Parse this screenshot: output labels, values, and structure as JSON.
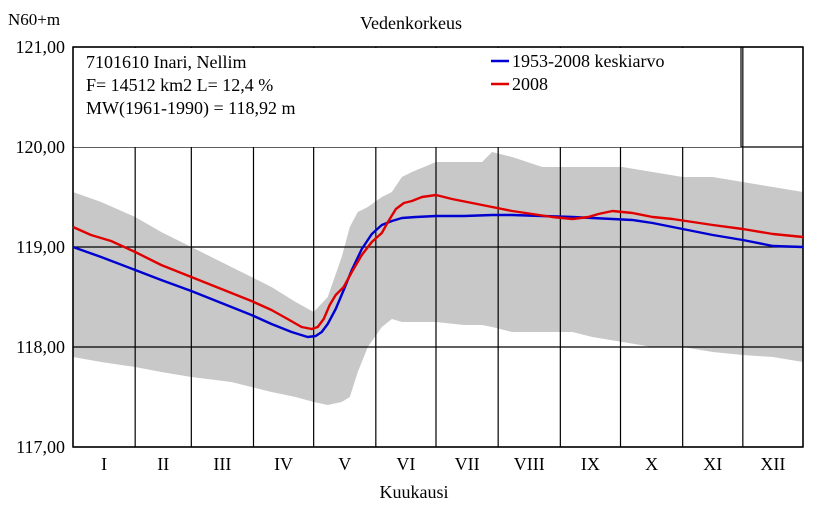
{
  "chart_data": {
    "type": "line",
    "title": "Vedenkorkeus",
    "ylabel": "N60+m",
    "xlabel": "Kuukausi",
    "ylim": [
      117.0,
      121.0
    ],
    "yticks": [
      "121,00",
      "120,00",
      "119,00",
      "118,00",
      "117,00"
    ],
    "ytick_values": [
      121.0,
      120.0,
      119.0,
      118.0,
      117.0
    ],
    "months": [
      "I",
      "II",
      "III",
      "IV",
      "V",
      "VI",
      "VII",
      "VIII",
      "IX",
      "X",
      "XI",
      "XII"
    ],
    "grid": true,
    "station_info": [
      "7101610 Inari, Nellim",
      "F=  14512 km2 L=  12,4 %",
      "MW(1961-1990) = 118,92 m"
    ],
    "legend_position": "top-right",
    "x_unit": "day of year",
    "envelope": {
      "x": [
        1,
        15,
        32,
        45,
        60,
        80,
        100,
        112,
        121,
        128,
        135,
        139,
        143,
        148,
        155,
        160,
        165,
        170,
        182,
        196,
        205,
        210,
        220,
        235,
        250,
        260,
        275,
        290,
        305,
        320,
        335,
        350,
        365
      ],
      "upper": [
        119.55,
        119.45,
        119.3,
        119.15,
        119.0,
        118.8,
        118.6,
        118.45,
        118.35,
        118.5,
        118.9,
        119.2,
        119.35,
        119.4,
        119.5,
        119.55,
        119.7,
        119.75,
        119.85,
        119.85,
        119.85,
        119.95,
        119.9,
        119.8,
        119.8,
        119.8,
        119.8,
        119.75,
        119.7,
        119.7,
        119.65,
        119.6,
        119.55
      ],
      "lower": [
        117.9,
        117.85,
        117.8,
        117.75,
        117.7,
        117.65,
        117.55,
        117.5,
        117.45,
        117.42,
        117.45,
        117.5,
        117.75,
        118.0,
        118.2,
        118.28,
        118.25,
        118.25,
        118.25,
        118.22,
        118.22,
        118.2,
        118.15,
        118.15,
        118.15,
        118.1,
        118.05,
        118.0,
        118.0,
        117.95,
        117.92,
        117.9,
        117.85
      ]
    },
    "series": [
      {
        "name": "1953-2008 keskiarvo",
        "color": "#0000d0",
        "x": [
          1,
          15,
          32,
          45,
          60,
          75,
          90,
          100,
          110,
          118,
          122,
          125,
          128,
          132,
          136,
          140,
          145,
          150,
          155,
          160,
          165,
          172,
          182,
          196,
          210,
          220,
          235,
          250,
          260,
          270,
          280,
          290,
          300,
          310,
          320,
          335,
          350,
          365
        ],
        "y": [
          119.0,
          118.9,
          118.77,
          118.67,
          118.56,
          118.44,
          118.32,
          118.23,
          118.15,
          118.1,
          118.11,
          118.15,
          118.23,
          118.38,
          118.57,
          118.77,
          118.98,
          119.13,
          119.22,
          119.26,
          119.29,
          119.3,
          119.31,
          119.31,
          119.32,
          119.32,
          119.31,
          119.3,
          119.29,
          119.28,
          119.27,
          119.24,
          119.2,
          119.16,
          119.12,
          119.07,
          119.01,
          119.0
        ]
      },
      {
        "name": "2008",
        "color": "#e00000",
        "x": [
          1,
          10,
          20,
          32,
          45,
          60,
          75,
          90,
          100,
          108,
          115,
          120,
          123,
          126,
          129,
          132,
          136,
          140,
          145,
          150,
          155,
          158,
          162,
          166,
          170,
          175,
          182,
          190,
          200,
          210,
          220,
          230,
          240,
          250,
          258,
          263,
          270,
          275,
          280,
          290,
          300,
          310,
          320,
          335,
          350,
          365
        ],
        "y": [
          119.2,
          119.12,
          119.06,
          118.95,
          118.82,
          118.7,
          118.58,
          118.46,
          118.37,
          118.28,
          118.2,
          118.18,
          118.2,
          118.28,
          118.42,
          118.52,
          118.6,
          118.75,
          118.92,
          119.05,
          119.14,
          119.25,
          119.38,
          119.44,
          119.46,
          119.5,
          119.52,
          119.48,
          119.44,
          119.4,
          119.36,
          119.33,
          119.3,
          119.28,
          119.3,
          119.33,
          119.36,
          119.35,
          119.34,
          119.3,
          119.28,
          119.25,
          119.22,
          119.18,
          119.13,
          119.1
        ]
      }
    ]
  },
  "colors": {
    "envelope_fill": "#c8c8c8",
    "grid": "#000000",
    "background": "#ffffff"
  }
}
